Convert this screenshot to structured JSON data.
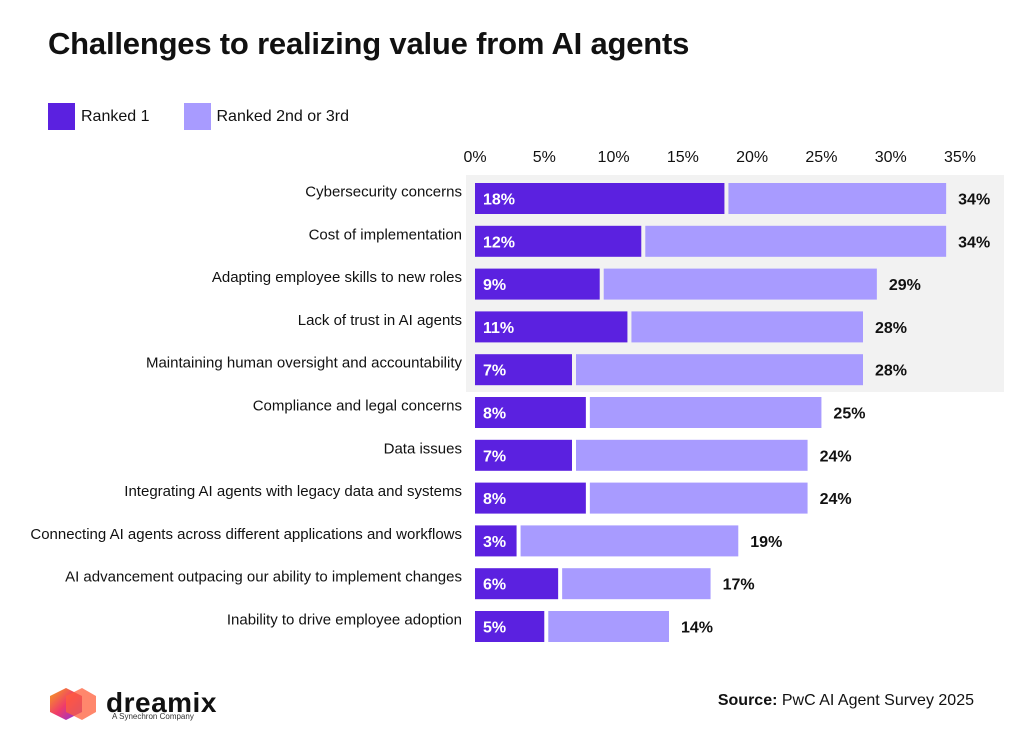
{
  "chart_data": {
    "type": "bar",
    "orientation": "horizontal",
    "stacked": true,
    "title": "Challenges to realizing value from AI agents",
    "categories": [
      "Cybersecurity concerns",
      "Cost of implementation",
      "Adapting employee skills to new roles",
      "Lack of trust in AI agents",
      "Maintaining human oversight and accountability",
      "Compliance and legal concerns",
      "Data issues",
      "Integrating AI agents with legacy data and systems",
      "Connecting AI agents across different applications and workflows",
      "AI advancement outpacing our ability to implement changes",
      "Inability to drive employee adoption"
    ],
    "series": [
      {
        "name": "Ranked 1",
        "color": "#5b21e0",
        "values": [
          18,
          12,
          9,
          11,
          7,
          8,
          7,
          8,
          3,
          6,
          5
        ]
      },
      {
        "name": "Ranked 2nd or 3rd",
        "color": "#a89bff",
        "values": [
          16,
          22,
          20,
          17,
          21,
          17,
          17,
          16,
          16,
          11,
          9
        ]
      }
    ],
    "bar_labels": [
      "18%",
      "12%",
      "9%",
      "11%",
      "7%",
      "8%",
      "7%",
      "8%",
      "3%",
      "6%",
      "5%"
    ],
    "total_labels": [
      "34%",
      "34%",
      "29%",
      "28%",
      "28%",
      "25%",
      "24%",
      "24%",
      "19%",
      "17%",
      "14%"
    ],
    "xlim": [
      0,
      35
    ],
    "x_ticks": [
      0,
      5,
      10,
      15,
      20,
      25,
      30,
      35
    ],
    "x_tick_labels": [
      "0%",
      "5%",
      "10%",
      "15%",
      "20%",
      "25%",
      "30%",
      "35%"
    ],
    "highlight_rows": 5,
    "highlight_color": "#f2f2f2",
    "legend_position": "top-left"
  },
  "logo": {
    "name": "dreamix",
    "subtitle": "A Synechron Company"
  },
  "source": {
    "label": "Source:",
    "text": "PwC AI Agent Survey 2025"
  }
}
